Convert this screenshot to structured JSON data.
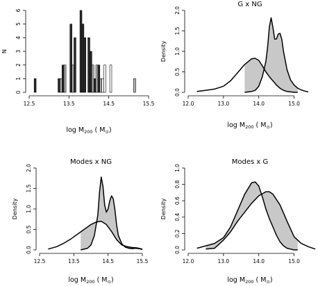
{
  "chart_data": [
    {
      "panel": "histogram",
      "type": "bar",
      "title": "",
      "xlabel": "log M",
      "xlabel_sub": "200",
      "xlabel_unit": "( M",
      "xlabel_unit_sub": "⊙",
      "xlabel_unit_end": ")",
      "ylabel": "N",
      "xlim": [
        12.5,
        15.5
      ],
      "ylim": [
        0,
        6
      ],
      "xticks": [
        "12.5",
        "13.5",
        "14.5",
        "15.5"
      ],
      "yticks": [
        "0",
        "1",
        "2",
        "3",
        "4",
        "5",
        "6"
      ],
      "bar_width": 0.05,
      "colors": {
        "G": "#2b2b2b",
        "Modes": "#b4b4b4",
        "NG": "#ffffff"
      },
      "series": [
        {
          "group": "G",
          "x": 12.65,
          "value": 1
        },
        {
          "group": "G",
          "x": 13.25,
          "value": 1
        },
        {
          "group": "Modes",
          "x": 13.3,
          "value": 1
        },
        {
          "group": "G",
          "x": 13.35,
          "value": 2
        },
        {
          "group": "Modes",
          "x": 13.4,
          "value": 2
        },
        {
          "group": "G",
          "x": 13.55,
          "value": 5
        },
        {
          "group": "Modes",
          "x": 13.6,
          "value": 2
        },
        {
          "group": "G",
          "x": 13.65,
          "value": 4
        },
        {
          "group": "G",
          "x": 13.8,
          "value": 6
        },
        {
          "group": "G",
          "x": 13.85,
          "value": 5
        },
        {
          "group": "G",
          "x": 13.9,
          "value": 4
        },
        {
          "group": "G",
          "x": 14.0,
          "value": 4
        },
        {
          "group": "G",
          "x": 14.05,
          "value": 3
        },
        {
          "group": "Modes",
          "x": 14.1,
          "value": 2
        },
        {
          "group": "G",
          "x": 14.15,
          "value": 1
        },
        {
          "group": "Modes",
          "x": 14.2,
          "value": 2
        },
        {
          "group": "G",
          "x": 14.25,
          "value": 2
        },
        {
          "group": "Modes",
          "x": 14.3,
          "value": 1
        },
        {
          "group": "NG",
          "x": 14.35,
          "value": 1
        },
        {
          "group": "NG",
          "x": 14.4,
          "value": 2
        },
        {
          "group": "NG",
          "x": 14.55,
          "value": 2
        },
        {
          "group": "Modes",
          "x": 15.15,
          "value": 1
        }
      ]
    },
    {
      "panel": "g-vs-ng",
      "type": "area",
      "title": "G x NG",
      "xlabel": "log M",
      "xlabel_sub": "200",
      "xlabel_unit": "( M",
      "xlabel_unit_sub": "⊙",
      "xlabel_unit_end": ")",
      "ylabel": "Density",
      "xlim": [
        12.0,
        15.5
      ],
      "ylim": [
        0,
        2.0
      ],
      "xticks": [
        "12.0",
        "13.0",
        "14.0",
        "15.0"
      ],
      "yticks": [
        "0.0",
        "0.5",
        "1.0",
        "1.5",
        "2.0"
      ],
      "curves": [
        {
          "x": [
            12.25,
            12.5,
            12.75,
            13.0,
            13.2,
            13.4,
            13.6,
            13.8,
            13.9,
            14.0,
            14.1,
            14.2,
            14.3,
            14.4,
            14.5,
            14.6,
            14.7,
            14.8,
            14.9,
            15.0,
            15.1
          ],
          "y": [
            0.02,
            0.05,
            0.08,
            0.15,
            0.28,
            0.48,
            0.68,
            0.82,
            0.83,
            0.78,
            0.65,
            0.5,
            0.38,
            0.28,
            0.18,
            0.1,
            0.05,
            0.02,
            0.01,
            0.0,
            0.0
          ]
        },
        {
          "x": [
            13.6,
            13.8,
            13.9,
            14.0,
            14.1,
            14.2,
            14.25,
            14.3,
            14.35,
            14.4,
            14.45,
            14.5,
            14.55,
            14.6,
            14.65,
            14.7,
            14.8,
            14.9,
            15.0,
            15.1,
            15.2,
            15.3,
            15.4
          ],
          "y": [
            0.0,
            0.02,
            0.05,
            0.15,
            0.38,
            0.75,
            1.1,
            1.6,
            1.82,
            1.58,
            1.3,
            1.3,
            1.42,
            1.44,
            1.3,
            1.0,
            0.55,
            0.3,
            0.18,
            0.1,
            0.06,
            0.03,
            0.01
          ]
        }
      ]
    },
    {
      "panel": "modes-vs-ng",
      "type": "area",
      "title": "Modes x NG",
      "xlabel": "log M",
      "xlabel_sub": "200",
      "xlabel_unit": "( M",
      "xlabel_unit_sub": "⊙",
      "xlabel_unit_end": ")",
      "ylabel": "Density",
      "xlim": [
        12.5,
        15.5
      ],
      "ylim": [
        0,
        2.0
      ],
      "xticks": [
        "12.5",
        "13.5",
        "14.5",
        "15.5"
      ],
      "yticks": [
        "0.0",
        "0.5",
        "1.0",
        "1.5",
        "2.0"
      ],
      "curves": [
        {
          "x": [
            12.75,
            13.0,
            13.2,
            13.4,
            13.6,
            13.8,
            14.0,
            14.15,
            14.3,
            14.45,
            14.6,
            14.75,
            14.9,
            15.05,
            15.2,
            15.35,
            15.5
          ],
          "y": [
            0.02,
            0.08,
            0.16,
            0.26,
            0.38,
            0.5,
            0.62,
            0.68,
            0.7,
            0.62,
            0.45,
            0.25,
            0.12,
            0.08,
            0.06,
            0.05,
            0.02
          ]
        },
        {
          "x": [
            13.7,
            13.9,
            14.0,
            14.1,
            14.2,
            14.25,
            14.3,
            14.35,
            14.4,
            14.45,
            14.5,
            14.55,
            14.6,
            14.65,
            14.7,
            14.75,
            14.8,
            14.9,
            15.0,
            15.1,
            15.2,
            15.3,
            15.4,
            15.5
          ],
          "y": [
            0.0,
            0.04,
            0.12,
            0.35,
            0.85,
            1.4,
            1.78,
            1.55,
            1.1,
            0.92,
            1.0,
            1.2,
            1.32,
            1.25,
            0.98,
            0.6,
            0.35,
            0.15,
            0.07,
            0.04,
            0.03,
            0.04,
            0.03,
            0.01
          ]
        }
      ]
    },
    {
      "panel": "modes-vs-g",
      "type": "area",
      "title": "Modes x G",
      "xlabel": "log M",
      "xlabel_sub": "200",
      "xlabel_unit": "( M",
      "xlabel_unit_sub": "⊙",
      "xlabel_unit_end": ")",
      "ylabel": "Density",
      "xlim": [
        12.0,
        15.5
      ],
      "ylim": [
        0,
        1.0
      ],
      "xticks": [
        "12.0",
        "13.0",
        "14.0",
        "15.0"
      ],
      "yticks": [
        "0.0",
        "0.2",
        "0.4",
        "0.6",
        "0.8",
        "1.0"
      ],
      "curves": [
        {
          "x": [
            12.25,
            12.5,
            12.75,
            13.0,
            13.2,
            13.4,
            13.6,
            13.8,
            13.9,
            14.0,
            14.1,
            14.2,
            14.3,
            14.4,
            14.5,
            14.6,
            14.7,
            14.8,
            14.9,
            15.0,
            15.1
          ],
          "y": [
            0.02,
            0.05,
            0.08,
            0.15,
            0.28,
            0.48,
            0.68,
            0.82,
            0.83,
            0.78,
            0.65,
            0.5,
            0.38,
            0.28,
            0.18,
            0.1,
            0.05,
            0.02,
            0.01,
            0.0,
            0.0
          ]
        },
        {
          "x": [
            12.5,
            12.75,
            13.0,
            13.2,
            13.4,
            13.6,
            13.8,
            14.0,
            14.2,
            14.3,
            14.4,
            14.6,
            14.8,
            15.0,
            15.2,
            15.4,
            15.6
          ],
          "y": [
            0.01,
            0.02,
            0.12,
            0.22,
            0.35,
            0.46,
            0.57,
            0.66,
            0.71,
            0.71,
            0.68,
            0.55,
            0.35,
            0.16,
            0.08,
            0.04,
            0.01
          ]
        }
      ]
    }
  ]
}
